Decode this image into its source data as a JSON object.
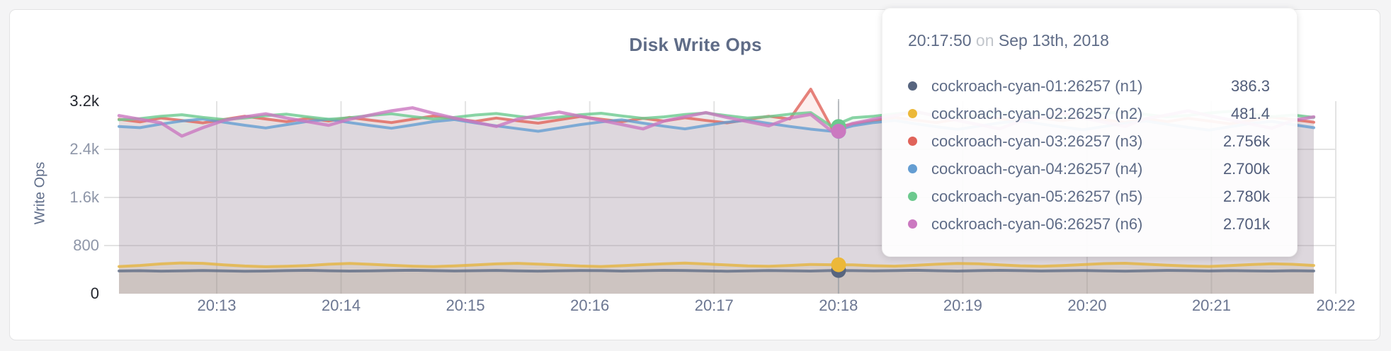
{
  "chart_data": {
    "type": "line",
    "title": "Disk Write Ops",
    "ylabel": "Write Ops",
    "xlabel": "",
    "grid": true,
    "ylim": [
      0,
      3200
    ],
    "y_ticks": [
      {
        "label": "3.2k",
        "value": 3200
      },
      {
        "label": "2.4k",
        "value": 2400
      },
      {
        "label": "1.6k",
        "value": 1600
      },
      {
        "label": "800",
        "value": 800
      },
      {
        "label": "0",
        "value": 0
      }
    ],
    "x_ticks": [
      "20:13",
      "20:14",
      "20:15",
      "20:16",
      "20:17",
      "20:18",
      "20:19",
      "20:20",
      "20:21",
      "20:22"
    ],
    "series": [
      {
        "name": "cockroach-cyan-01:26257 (n1)",
        "color": "#5e6b85",
        "fill_opacity": 0.14,
        "line_width": 4,
        "values": [
          378,
          382,
          375,
          380,
          385,
          379,
          373,
          377,
          383,
          388,
          381,
          376,
          380,
          386,
          390,
          384,
          378,
          382,
          387,
          380,
          375,
          381,
          386,
          383,
          377,
          382,
          388,
          385,
          379,
          374,
          380,
          385,
          381,
          376,
          386,
          383,
          379,
          384,
          389,
          382,
          377,
          383,
          388,
          384,
          378,
          382,
          386,
          380,
          375,
          381,
          387,
          383,
          378,
          384,
          380,
          376,
          382,
          378
        ]
      },
      {
        "name": "cockroach-cyan-02:26257 (n2)",
        "color": "#e5b43f",
        "fill_opacity": 0.14,
        "line_width": 4,
        "values": [
          452,
          470,
          495,
          510,
          505,
          480,
          460,
          448,
          455,
          468,
          490,
          502,
          488,
          472,
          458,
          450,
          462,
          478,
          495,
          505,
          492,
          476,
          460,
          452,
          466,
          482,
          498,
          508,
          494,
          478,
          462,
          455,
          470,
          486,
          481,
          479,
          465,
          458,
          472,
          490,
          504,
          496,
          480,
          464,
          456,
          468,
          484,
          500,
          506,
          490,
          474,
          460,
          453,
          467,
          483,
          497,
          488,
          470
        ]
      },
      {
        "name": "cockroach-cyan-03:26257 (n3)",
        "color": "#e0635a",
        "fill_opacity": 0.1,
        "line_width": 4,
        "values": [
          2900,
          2855,
          2920,
          2880,
          2840,
          2895,
          2950,
          2905,
          2860,
          2915,
          2870,
          2930,
          2885,
          2845,
          2900,
          2955,
          2910,
          2865,
          2920,
          2875,
          2835,
          2890,
          2945,
          2900,
          2860,
          2915,
          2870,
          2925,
          2880,
          2840,
          2895,
          2950,
          2905,
          3400,
          2756,
          2820,
          2875,
          2930,
          2885,
          2845,
          2900,
          2955,
          2910,
          2865,
          2920,
          2875,
          2930,
          2890,
          2850,
          2905,
          2860,
          2915,
          2870,
          2825,
          2880,
          2935,
          2895,
          2850
        ]
      },
      {
        "name": "cockroach-cyan-04:26257 (n4)",
        "color": "#649dd2",
        "fill_opacity": 0.1,
        "line_width": 4,
        "values": [
          2780,
          2760,
          2820,
          2870,
          2905,
          2850,
          2800,
          2755,
          2810,
          2865,
          2900,
          2845,
          2795,
          2750,
          2805,
          2860,
          2895,
          2840,
          2790,
          2745,
          2700,
          2755,
          2810,
          2855,
          2890,
          2835,
          2785,
          2740,
          2795,
          2850,
          2885,
          2830,
          2780,
          2735,
          2700,
          2790,
          2845,
          2880,
          2825,
          2775,
          2730,
          2785,
          2840,
          2875,
          2820,
          2770,
          2725,
          2780,
          2835,
          2870,
          2815,
          2765,
          2720,
          2775,
          2830,
          2865,
          2810,
          2760
        ]
      },
      {
        "name": "cockroach-cyan-05:26257 (n5)",
        "color": "#6cc98e",
        "fill_opacity": 0.1,
        "line_width": 4,
        "values": [
          2890,
          2910,
          2950,
          2975,
          2930,
          2895,
          2920,
          2960,
          2985,
          2940,
          2900,
          2925,
          2965,
          2990,
          2945,
          2905,
          2930,
          2970,
          2995,
          2950,
          2910,
          2935,
          2975,
          3000,
          2955,
          2915,
          2940,
          2980,
          3005,
          2960,
          2920,
          2945,
          2985,
          3010,
          2780,
          2925,
          2950,
          2990,
          3015,
          2970,
          2930,
          2955,
          2995,
          3020,
          2975,
          2935,
          2960,
          3000,
          3025,
          2980,
          2940,
          2965,
          3005,
          3030,
          2985,
          2945,
          2970,
          2930
        ]
      },
      {
        "name": "cockroach-cyan-06:26257 (n6)",
        "color": "#cb78c0",
        "fill_opacity": 0.1,
        "line_width": 4.5,
        "values": [
          2960,
          2900,
          2840,
          2620,
          2760,
          2880,
          2940,
          2990,
          2920,
          2860,
          2800,
          2900,
          2970,
          3040,
          3090,
          3000,
          2920,
          2850,
          2780,
          2900,
          2960,
          3020,
          2950,
          2880,
          2810,
          2740,
          2870,
          2940,
          3010,
          2930,
          2860,
          2790,
          2920,
          2980,
          2701,
          2830,
          2900,
          2960,
          3030,
          2950,
          2880,
          2810,
          2740,
          2870,
          2930,
          3000,
          2920,
          2850,
          2780,
          2910,
          2970,
          3040,
          2960,
          2890,
          2820,
          2750,
          2880,
          2940
        ]
      }
    ]
  },
  "tooltip": {
    "time": "20:17:50",
    "conjunction": "on",
    "date": "Sep 13th, 2018",
    "rows": [
      {
        "label": "cockroach-cyan-01:26257 (n1)",
        "display": "386.3",
        "value": 386.3,
        "color": "#57657f"
      },
      {
        "label": "cockroach-cyan-02:26257 (n2)",
        "display": "481.4",
        "value": 481.4,
        "color": "#ecb839"
      },
      {
        "label": "cockroach-cyan-03:26257 (n3)",
        "display": "2.756k",
        "value": 2756,
        "color": "#e0635a"
      },
      {
        "label": "cockroach-cyan-04:26257 (n4)",
        "display": "2.700k",
        "value": 2700,
        "color": "#649dd2"
      },
      {
        "label": "cockroach-cyan-05:26257 (n5)",
        "display": "2.780k",
        "value": 2780,
        "color": "#6cc98e"
      },
      {
        "label": "cockroach-cyan-06:26257 (n6)",
        "display": "2.701k",
        "value": 2701,
        "color": "#cb78c0"
      }
    ]
  },
  "hover": {
    "x_tick_label": "20:18"
  }
}
